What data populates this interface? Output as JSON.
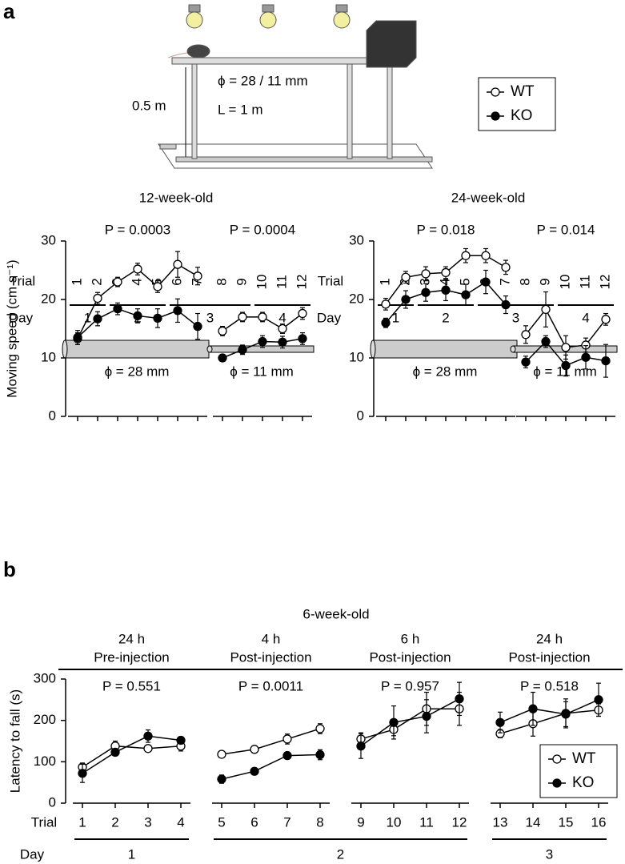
{
  "panels": {
    "a": "a",
    "b": "b"
  },
  "diagram": {
    "diameter": "ϕ = 28 / 11 mm",
    "length": "L = 1 m",
    "height": "0.5 m"
  },
  "chart_data": [
    {
      "type": "line",
      "title": "12-week-old",
      "ylabel": "Moving speed (cm s⁻¹)",
      "xlabel": "Trial",
      "day_label": "Day",
      "ylim": [
        0,
        30
      ],
      "yticks": [
        0,
        10,
        20,
        30
      ],
      "legend": true,
      "days": [
        "1",
        "2",
        "3",
        "4"
      ],
      "groups": [
        {
          "annotation": "P = 0.0003",
          "tube": "ϕ = 28 mm",
          "categories": [
            "1",
            "2",
            "3",
            "4",
            "5",
            "6",
            "7"
          ]
        },
        {
          "annotation": "P = 0.0004",
          "tube": "ϕ = 11 mm",
          "categories": [
            "8",
            "9",
            "10",
            "11",
            "12"
          ]
        }
      ],
      "series": [
        {
          "name": "WT",
          "filled": false,
          "values": [
            [
              13.3,
              20.2,
              23,
              25.2,
              22.2,
              26,
              24
            ],
            [
              14.6,
              17,
              17,
              15,
              17.6
            ]
          ],
          "errors": [
            [
              1,
              1,
              0.8,
              1,
              1,
              2.2,
              1.5
            ],
            [
              0.8,
              0.8,
              0.8,
              0.8,
              1
            ]
          ]
        },
        {
          "name": "KO",
          "filled": true,
          "values": [
            [
              13.5,
              16.7,
              18.4,
              17.2,
              16.8,
              18.1,
              15.4
            ],
            [
              10,
              11.4,
              12.8,
              12.7,
              13.3
            ]
          ],
          "errors": [
            [
              1.2,
              1.2,
              1,
              1.2,
              1.6,
              2,
              2.2
            ],
            [
              0.6,
              0.8,
              1,
              1,
              1
            ]
          ]
        }
      ]
    },
    {
      "type": "line",
      "title": "24-week-old",
      "xlabel": "Trial",
      "day_label": "Day",
      "ylim": [
        0,
        30
      ],
      "yticks": [
        0,
        10,
        20,
        30
      ],
      "days": [
        "1",
        "2",
        "3",
        "4"
      ],
      "groups": [
        {
          "annotation": "P = 0.018",
          "tube": "ϕ = 28 mm",
          "categories": [
            "1",
            "2",
            "3",
            "4",
            "5",
            "6",
            "7"
          ]
        },
        {
          "annotation": "P = 0.014",
          "tube": "ϕ = 11 mm",
          "categories": [
            "8",
            "9",
            "10",
            "11",
            "12"
          ]
        }
      ],
      "series": [
        {
          "name": "WT",
          "filled": false,
          "values": [
            [
              19.2,
              23.8,
              24.4,
              24.6,
              27.5,
              27.5,
              25.5
            ],
            [
              14,
              18.3,
              11.8,
              12.2,
              16.6
            ]
          ],
          "errors": [
            [
              1,
              1,
              1.2,
              1,
              1.2,
              1.2,
              1.2
            ],
            [
              1.5,
              3,
              2,
              1.2,
              1
            ]
          ]
        },
        {
          "name": "KO",
          "filled": true,
          "values": [
            [
              16,
              20,
              21.2,
              21.6,
              20.8,
              23,
              19.1
            ],
            [
              9.3,
              12.8,
              8.7,
              10.1,
              9.5
            ]
          ],
          "errors": [
            [
              0.8,
              1.5,
              1.5,
              1.8,
              1.8,
              2,
              1.5
            ],
            [
              1,
              1,
              1.8,
              2,
              2.8
            ]
          ]
        }
      ]
    },
    {
      "type": "line",
      "title": "6-week-old",
      "ylabel": "Latency to fall (s)",
      "xlabel": "Trial",
      "day_label": "Day",
      "ylim": [
        0,
        300
      ],
      "yticks": [
        0,
        100,
        200,
        300
      ],
      "legend": true,
      "days": [
        "1",
        "2",
        "3"
      ],
      "groups": [
        {
          "header": [
            "24 h",
            "Pre-injection"
          ],
          "annotation": "P = 0.551",
          "categories": [
            "1",
            "2",
            "3",
            "4"
          ]
        },
        {
          "header": [
            "4 h",
            "Post-injection"
          ],
          "annotation": "P = 0.0011",
          "categories": [
            "5",
            "6",
            "7",
            "8"
          ]
        },
        {
          "header": [
            "6 h",
            "Post-injection"
          ],
          "annotation": "P = 0.957",
          "categories": [
            "9",
            "10",
            "11",
            "12"
          ]
        },
        {
          "header": [
            "24 h",
            "Post-injection"
          ],
          "annotation": "P = 0.518",
          "categories": [
            "13",
            "14",
            "15",
            "16"
          ]
        }
      ],
      "series": [
        {
          "name": "WT",
          "filled": false,
          "values": [
            [
              87,
              138,
              132,
              138
            ],
            [
              118,
              130,
              155,
              180
            ],
            [
              155,
              178,
              228,
              228
            ],
            [
              168,
              192,
              217,
              225
            ]
          ],
          "errors": [
            [
              10,
              12,
              6,
              12
            ],
            [
              8,
              6,
              12,
              12
            ],
            [
              15,
              15,
              40,
              40
            ],
            [
              10,
              30,
              35,
              15
            ]
          ]
        },
        {
          "name": "KO",
          "filled": true,
          "values": [
            [
              72,
              123,
              162,
              152
            ],
            [
              58,
              77,
              115,
              117
            ],
            [
              138,
              195,
              210,
              252
            ],
            [
              195,
              228,
              215,
              250
            ]
          ],
          "errors": [
            [
              22,
              6,
              15,
              8
            ],
            [
              10,
              5,
              5,
              12
            ],
            [
              30,
              40,
              40,
              40
            ],
            [
              25,
              40,
              30,
              40
            ]
          ]
        }
      ]
    }
  ]
}
